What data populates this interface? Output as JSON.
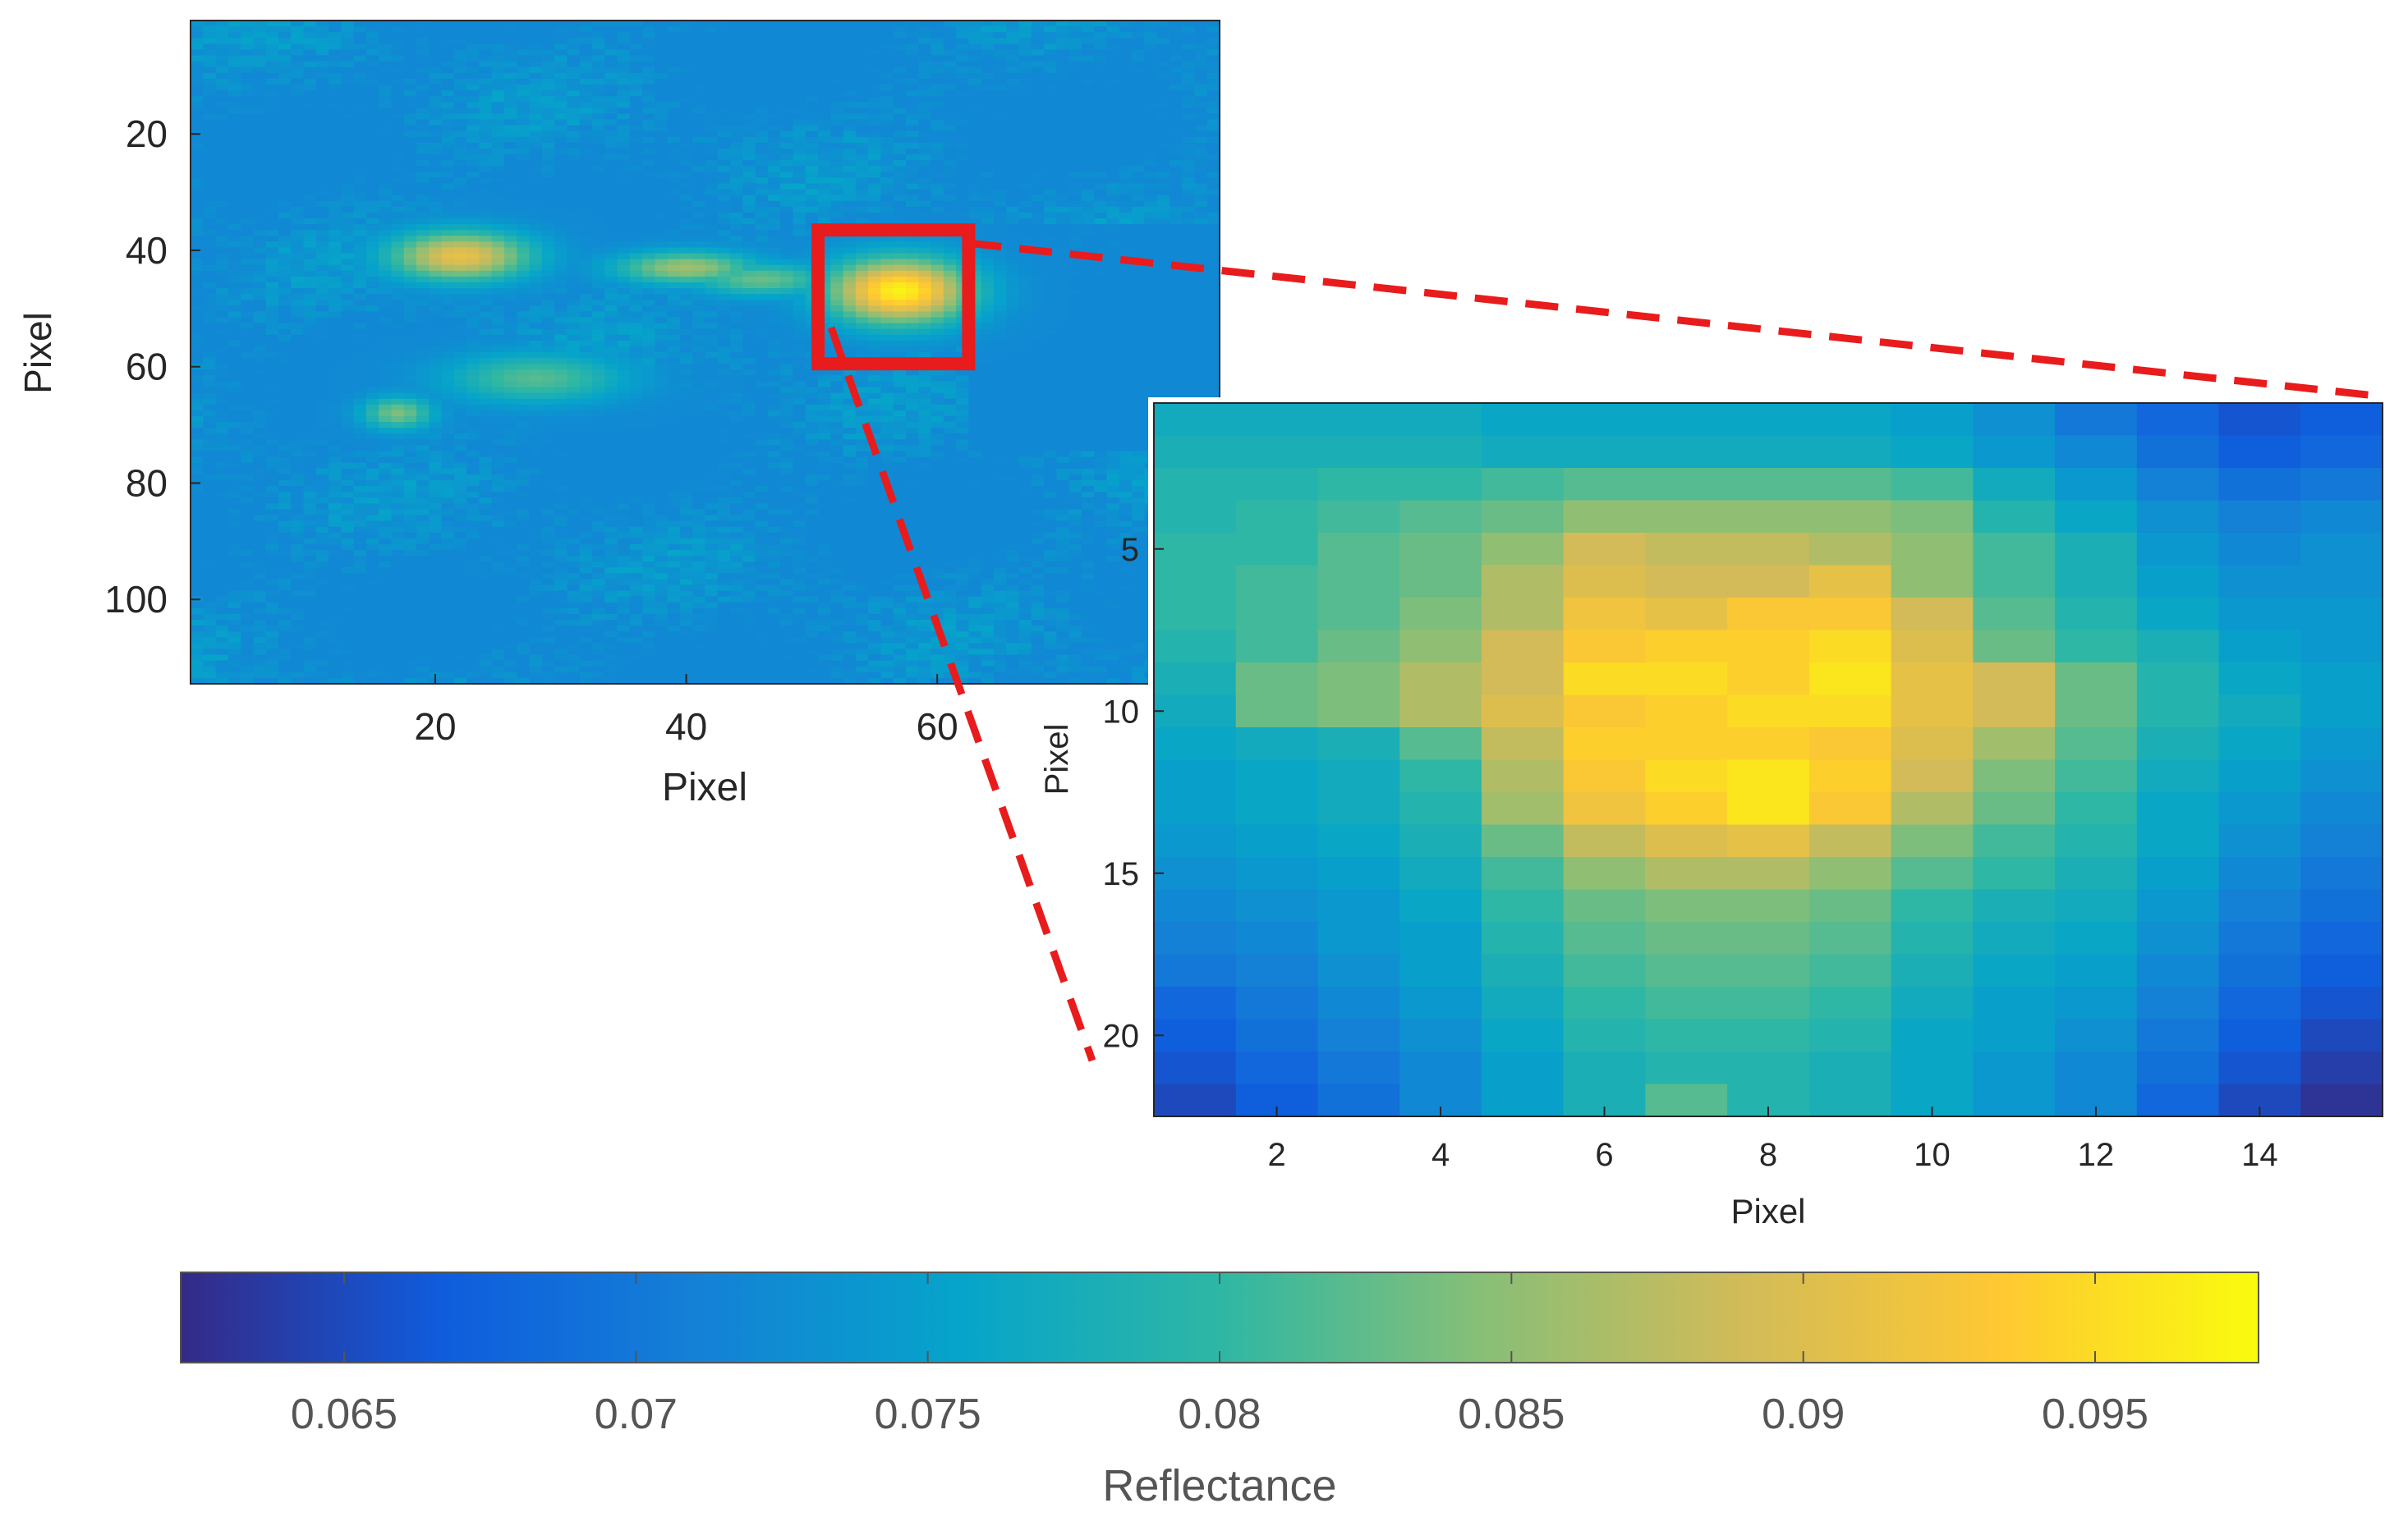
{
  "chart_data": [
    {
      "type": "heatmap",
      "name": "full-scene",
      "xlabel": "Pixel",
      "ylabel": "Pixel",
      "xlim": [
        0.5,
        82.5
      ],
      "ylim": [
        0.5,
        114.5
      ],
      "xticks": [
        20,
        40,
        60
      ],
      "yticks": [
        20,
        40,
        60,
        80,
        100
      ],
      "x_tick_labels": [
        "20",
        "40",
        "60"
      ],
      "y_tick_labels": [
        "20",
        "40",
        "60",
        "80",
        "100"
      ],
      "background_level": 0.072,
      "hotspots": [
        {
          "x": 22,
          "y": 41,
          "sx": 4,
          "sy": 3,
          "value": 0.091
        },
        {
          "x": 17,
          "y": 68,
          "sx": 2,
          "sy": 2,
          "value": 0.084
        },
        {
          "x": 28,
          "y": 62,
          "sx": 5,
          "sy": 3,
          "value": 0.082
        },
        {
          "x": 40,
          "y": 43,
          "sx": 4,
          "sy": 2,
          "value": 0.086
        },
        {
          "x": 46,
          "y": 45,
          "sx": 4,
          "sy": 2,
          "value": 0.083
        },
        {
          "x": 57,
          "y": 47,
          "sx": 4,
          "sy": 4,
          "value": 0.097
        }
      ],
      "zoom_region": {
        "x0": 50.5,
        "x1": 62.5,
        "y0": 36.5,
        "y1": 59.5
      }
    },
    {
      "type": "heatmap",
      "name": "zoomed-region",
      "xlabel": "Pixel",
      "ylabel": "Pixel",
      "xlim": [
        0.5,
        15.5
      ],
      "ylim": [
        0.5,
        22.5
      ],
      "xticks": [
        2,
        4,
        6,
        8,
        10,
        12,
        14
      ],
      "yticks": [
        5,
        10,
        15,
        20
      ],
      "x_tick_labels": [
        "2",
        "4",
        "6",
        "8",
        "10",
        "12",
        "14"
      ],
      "y_tick_labels": [
        "5",
        "10",
        "15",
        "20"
      ],
      "grid": [
        [
          0.077,
          0.077,
          0.077,
          0.077,
          0.076,
          0.076,
          0.076,
          0.076,
          0.076,
          0.075,
          0.073,
          0.07,
          0.068,
          0.066,
          0.067
        ],
        [
          0.078,
          0.078,
          0.078,
          0.078,
          0.077,
          0.077,
          0.077,
          0.077,
          0.077,
          0.076,
          0.074,
          0.072,
          0.069,
          0.067,
          0.068
        ],
        [
          0.079,
          0.079,
          0.08,
          0.08,
          0.081,
          0.082,
          0.082,
          0.082,
          0.082,
          0.081,
          0.077,
          0.074,
          0.071,
          0.069,
          0.07
        ],
        [
          0.079,
          0.08,
          0.081,
          0.082,
          0.083,
          0.085,
          0.085,
          0.085,
          0.085,
          0.084,
          0.079,
          0.076,
          0.073,
          0.071,
          0.072
        ],
        [
          0.08,
          0.08,
          0.082,
          0.083,
          0.085,
          0.089,
          0.088,
          0.088,
          0.087,
          0.085,
          0.081,
          0.078,
          0.074,
          0.072,
          0.073
        ],
        [
          0.08,
          0.081,
          0.082,
          0.083,
          0.087,
          0.09,
          0.089,
          0.089,
          0.091,
          0.085,
          0.081,
          0.078,
          0.075,
          0.073,
          0.073
        ],
        [
          0.08,
          0.081,
          0.082,
          0.084,
          0.087,
          0.092,
          0.091,
          0.093,
          0.093,
          0.089,
          0.082,
          0.079,
          0.076,
          0.074,
          0.074
        ],
        [
          0.079,
          0.081,
          0.083,
          0.085,
          0.089,
          0.093,
          0.094,
          0.094,
          0.095,
          0.09,
          0.083,
          0.08,
          0.078,
          0.075,
          0.074
        ],
        [
          0.078,
          0.083,
          0.084,
          0.087,
          0.089,
          0.095,
          0.095,
          0.094,
          0.096,
          0.091,
          0.089,
          0.083,
          0.079,
          0.076,
          0.075
        ],
        [
          0.077,
          0.083,
          0.084,
          0.087,
          0.09,
          0.093,
          0.094,
          0.095,
          0.095,
          0.091,
          0.089,
          0.083,
          0.079,
          0.077,
          0.075
        ],
        [
          0.076,
          0.077,
          0.078,
          0.082,
          0.088,
          0.094,
          0.094,
          0.094,
          0.093,
          0.09,
          0.086,
          0.082,
          0.078,
          0.076,
          0.074
        ],
        [
          0.075,
          0.076,
          0.077,
          0.08,
          0.087,
          0.093,
          0.095,
          0.096,
          0.094,
          0.089,
          0.084,
          0.081,
          0.077,
          0.075,
          0.073
        ],
        [
          0.075,
          0.076,
          0.077,
          0.079,
          0.086,
          0.092,
          0.094,
          0.096,
          0.093,
          0.087,
          0.083,
          0.08,
          0.076,
          0.074,
          0.072
        ],
        [
          0.074,
          0.075,
          0.076,
          0.078,
          0.083,
          0.088,
          0.09,
          0.091,
          0.088,
          0.084,
          0.081,
          0.079,
          0.076,
          0.073,
          0.071
        ],
        [
          0.073,
          0.074,
          0.075,
          0.077,
          0.081,
          0.085,
          0.087,
          0.087,
          0.085,
          0.082,
          0.08,
          0.078,
          0.075,
          0.072,
          0.07
        ],
        [
          0.072,
          0.073,
          0.074,
          0.076,
          0.08,
          0.083,
          0.084,
          0.084,
          0.083,
          0.08,
          0.078,
          0.077,
          0.074,
          0.071,
          0.069
        ],
        [
          0.071,
          0.072,
          0.074,
          0.075,
          0.079,
          0.082,
          0.083,
          0.083,
          0.082,
          0.079,
          0.077,
          0.076,
          0.073,
          0.07,
          0.068
        ],
        [
          0.07,
          0.071,
          0.073,
          0.075,
          0.078,
          0.081,
          0.082,
          0.082,
          0.081,
          0.078,
          0.076,
          0.075,
          0.072,
          0.069,
          0.067
        ],
        [
          0.068,
          0.07,
          0.072,
          0.074,
          0.077,
          0.08,
          0.081,
          0.081,
          0.08,
          0.077,
          0.075,
          0.074,
          0.071,
          0.068,
          0.066
        ],
        [
          0.067,
          0.069,
          0.071,
          0.073,
          0.076,
          0.079,
          0.08,
          0.08,
          0.079,
          0.076,
          0.075,
          0.073,
          0.07,
          0.067,
          0.065
        ],
        [
          0.066,
          0.068,
          0.07,
          0.072,
          0.075,
          0.078,
          0.079,
          0.079,
          0.078,
          0.076,
          0.074,
          0.072,
          0.069,
          0.066,
          0.064
        ],
        [
          0.065,
          0.067,
          0.069,
          0.072,
          0.075,
          0.078,
          0.082,
          0.079,
          0.078,
          0.076,
          0.074,
          0.072,
          0.068,
          0.065,
          0.063
        ]
      ]
    },
    {
      "type": "colorbar",
      "name": "colorbar",
      "label": "Reflectance",
      "range": [
        0.0622,
        0.0978
      ],
      "ticks": [
        0.065,
        0.07,
        0.075,
        0.08,
        0.085,
        0.09,
        0.095
      ],
      "tick_labels": [
        "0.065",
        "0.07",
        "0.075",
        "0.08",
        "0.085",
        "0.09",
        "0.095"
      ],
      "colormap": "parula",
      "colormap_stops": [
        "#352a87",
        "#0f5cdd",
        "#1481d6",
        "#06a4ca",
        "#2eb7a4",
        "#87bf77",
        "#d1bb59",
        "#fec832",
        "#f9fb0e"
      ]
    }
  ],
  "colors": {
    "zoom_box": "#e81c1c",
    "connector": "#e81c1c"
  }
}
